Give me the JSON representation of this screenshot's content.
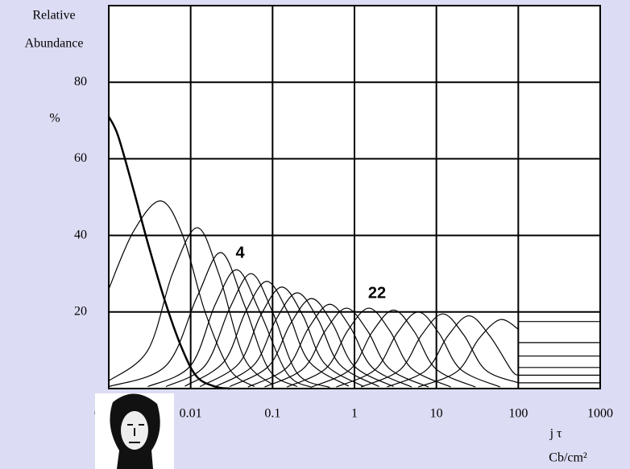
{
  "chart_data": {
    "type": "line",
    "y_label": [
      "Relative",
      "Abundance"
    ],
    "y_unit": "%",
    "x_label": "j τ",
    "x_unit": "Cb/cm²",
    "annotations": [
      "4",
      "22"
    ],
    "log_x": true,
    "grid": true,
    "xlim": [
      0.001,
      1000
    ],
    "xticks": [
      0.001,
      0.01,
      0.1,
      1,
      10,
      100,
      1000
    ],
    "ylim": [
      0,
      100
    ],
    "yticks": [
      20,
      40,
      60,
      80
    ],
    "series": [
      {
        "color": "#000000",
        "line_width": 2.5,
        "x": [
          0.001,
          0.0013,
          0.002,
          0.003,
          0.005,
          0.008,
          0.012,
          0.02,
          0.03
        ],
        "values": [
          71,
          66,
          52,
          38,
          22,
          10,
          3,
          0.5,
          0
        ]
      },
      {
        "color": "#000000",
        "line_width": 1.2,
        "x": [
          0.001,
          0.002,
          0.0043,
          0.008,
          0.015,
          0.03,
          0.06
        ],
        "values": [
          26,
          41,
          49,
          40,
          20,
          5,
          0.5
        ]
      },
      {
        "color": "#000000",
        "line_width": 1.2,
        "x": [
          0.001,
          0.003,
          0.006,
          0.012,
          0.022,
          0.045,
          0.1
        ],
        "values": [
          2,
          10,
          30,
          42,
          30,
          8,
          1
        ]
      },
      {
        "color": "#000000",
        "line_width": 1.2,
        "x": [
          0.001,
          0.005,
          0.012,
          0.0235,
          0.045,
          0.09,
          0.2
        ],
        "values": [
          0.5,
          6,
          24,
          35.5,
          22,
          5,
          0.5
        ]
      },
      {
        "color": "#000000",
        "line_width": 1.2,
        "x": [
          0.003,
          0.01,
          0.02,
          0.037,
          0.07,
          0.15,
          0.3
        ],
        "values": [
          0.5,
          6,
          22,
          31,
          20,
          4,
          0.3
        ]
      },
      {
        "color": "#000000",
        "line_width": 1.2,
        "x": [
          0.005,
          0.015,
          0.03,
          0.055,
          0.1,
          0.2,
          0.5
        ],
        "values": [
          0.5,
          6,
          21,
          30,
          20,
          4,
          0.3
        ]
      },
      {
        "color": "#000000",
        "line_width": 1.2,
        "x": [
          0.0085,
          0.0255,
          0.04675,
          0.085,
          0.153,
          0.2805,
          0.85
        ],
        "values": [
          0.6,
          7,
          20,
          28,
          20,
          7,
          0.6
        ]
      },
      {
        "color": "#000000",
        "line_width": 1.2,
        "x": [
          0.013,
          0.039,
          0.0715,
          0.13,
          0.234,
          0.429,
          1.3
        ],
        "values": [
          0.5,
          6.6,
          19.1,
          26.5,
          19.1,
          6.6,
          0.5
        ]
      },
      {
        "color": "#000000",
        "line_width": 1.2,
        "x": [
          0.02,
          0.06,
          0.11,
          0.2,
          0.36,
          0.66,
          2
        ],
        "values": [
          0.5,
          6.3,
          18,
          25,
          18,
          6.3,
          0.5
        ]
      },
      {
        "color": "#000000",
        "line_width": 1.2,
        "x": [
          0.03,
          0.09,
          0.165,
          0.3,
          0.54,
          0.99,
          3
        ],
        "values": [
          0.5,
          5.9,
          16.9,
          23.5,
          16.9,
          5.9,
          0.5
        ]
      },
      {
        "color": "#000000",
        "line_width": 1.2,
        "x": [
          0.05,
          0.15,
          0.275,
          0.5,
          0.9,
          1.65,
          5
        ],
        "values": [
          0.4,
          5.5,
          15.8,
          22,
          15.8,
          5.5,
          0.4
        ]
      },
      {
        "color": "#000000",
        "line_width": 1.2,
        "x": [
          0.08,
          0.24,
          0.44,
          0.8,
          1.44,
          2.64,
          8
        ],
        "values": [
          0.4,
          5.3,
          15.1,
          21,
          15.1,
          5.3,
          0.4
        ]
      },
      {
        "color": "#000000",
        "line_width": 1.2,
        "x": [
          0.15,
          0.45,
          0.825,
          1.5,
          2.7,
          4.95,
          15
        ],
        "values": [
          0.4,
          5.3,
          15.1,
          21,
          15.1,
          5.3,
          0.4
        ]
      },
      {
        "color": "#000000",
        "line_width": 1.2,
        "x": [
          0.3,
          0.9,
          1.65,
          3,
          5.4,
          9.9,
          30
        ],
        "values": [
          0.4,
          5.1,
          14.8,
          20.5,
          14.8,
          5.1,
          0.4
        ]
      },
      {
        "color": "#000000",
        "line_width": 1.2,
        "x": [
          0.6,
          1.8,
          3.3,
          6,
          10.8,
          19.8,
          60
        ],
        "values": [
          0.4,
          5,
          14.4,
          20,
          14.4,
          5,
          0.4
        ]
      },
      {
        "color": "#000000",
        "line_width": 1.2,
        "x": [
          1.2,
          3.6,
          6.6,
          12,
          21.6,
          39.6,
          100
        ],
        "values": [
          0.4,
          4.9,
          14,
          19.5,
          14,
          4.9,
          1.5
        ]
      },
      {
        "color": "#000000",
        "line_width": 1.2,
        "x": [
          2.5,
          7.5,
          13.75,
          25,
          45,
          82.5,
          100
        ],
        "values": [
          0.4,
          4.8,
          13.7,
          19,
          13.7,
          4.8,
          3.5
        ]
      },
      {
        "color": "#000000",
        "line_width": 1.2,
        "x": [
          6,
          18,
          33,
          60,
          100
        ],
        "values": [
          0.4,
          4.5,
          13,
          18,
          15.5
        ]
      },
      {
        "color": "#000000",
        "line_width": 1.2,
        "x": [
          100,
          1000
        ],
        "values": [
          17.5,
          17.5
        ]
      },
      {
        "color": "#000000",
        "line_width": 1.2,
        "x": [
          100,
          1000
        ],
        "values": [
          12,
          12
        ]
      },
      {
        "color": "#000000",
        "line_width": 1.2,
        "x": [
          100,
          1000
        ],
        "values": [
          8.5,
          8.5
        ]
      },
      {
        "color": "#000000",
        "line_width": 1.2,
        "x": [
          100,
          1000
        ],
        "values": [
          5.5,
          5.5
        ]
      },
      {
        "color": "#000000",
        "line_width": 1.2,
        "x": [
          100,
          1000
        ],
        "values": [
          3.5,
          3.5
        ]
      },
      {
        "color": "#000000",
        "line_width": 1.2,
        "x": [
          100,
          1000
        ],
        "values": [
          1.5,
          1.5
        ]
      }
    ]
  }
}
